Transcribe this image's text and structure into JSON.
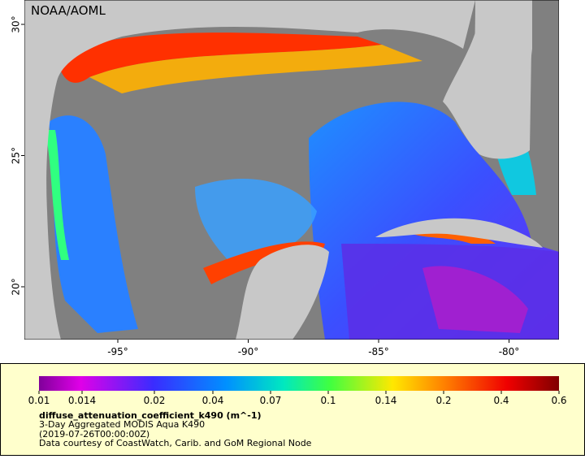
{
  "map": {
    "credit": "NOAA/AOML",
    "lat_ticks": [
      {
        "value": 30,
        "label": "30°"
      },
      {
        "value": 25,
        "label": "25°"
      },
      {
        "value": 20,
        "label": "20°"
      }
    ],
    "lon_ticks": [
      {
        "value": -95,
        "label": "-95°"
      },
      {
        "value": -90,
        "label": "-90°"
      },
      {
        "value": -85,
        "label": "-85°"
      },
      {
        "value": -80,
        "label": "-80°"
      }
    ]
  },
  "colorbar": {
    "ticks": [
      0.01,
      0.014,
      0.02,
      0.04,
      0.07,
      0.1,
      0.14,
      0.2,
      0.4,
      0.6
    ]
  },
  "legend": {
    "variable": "diffuse_attenuation_coefficient_k490 (m^-1)",
    "description": "3-Day Aggregated MODIS Aqua K490",
    "time": "(2019-07-26T00:00:00Z)",
    "source": "Data courtesy of CoastWatch, Carib. and GoM Regional Node"
  }
}
